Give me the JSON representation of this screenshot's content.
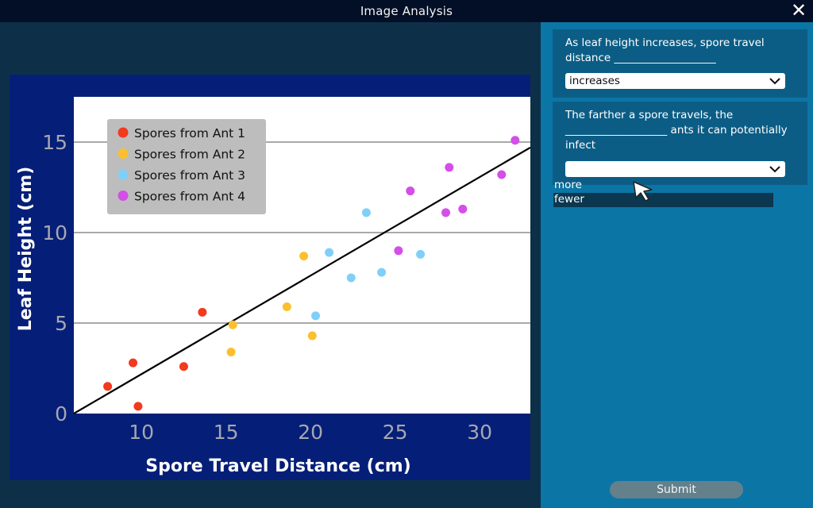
{
  "window": {
    "title": "Image Analysis",
    "close_label": "✕"
  },
  "questions": [
    {
      "text": "As leaf height increases, spore travel distance ___________________",
      "selected": "increases"
    },
    {
      "text": "The farther a spore travels, the ___________________ ants it can potentially infect",
      "selected": "",
      "options": [
        "more",
        "fewer"
      ],
      "highlighted": "fewer"
    }
  ],
  "submit_label": "Submit",
  "colors": {
    "ant1": "#f23a1e",
    "ant2": "#fcbf2e",
    "ant3": "#7fd0f8",
    "ant4": "#d44ee8",
    "axis_bg": "#051f78",
    "plot_bg": "#ffffff",
    "trend": "#000000"
  },
  "chart_data": {
    "type": "scatter",
    "title": "",
    "xlabel": "Spore Travel Distance (cm)",
    "ylabel": "Leaf Height (cm)",
    "xlim": [
      6,
      33
    ],
    "ylim": [
      0,
      17.5
    ],
    "xticks": [
      10,
      15,
      20,
      25,
      30
    ],
    "yticks": [
      0,
      5,
      10,
      15
    ],
    "grid": "horizontal",
    "legend_position": "top-left",
    "series": [
      {
        "name": "Spores from Ant 1",
        "color": "#f23a1e",
        "points": [
          [
            8,
            1.5
          ],
          [
            9.5,
            2.8
          ],
          [
            9.8,
            0.4
          ],
          [
            12.5,
            2.6
          ],
          [
            13.6,
            5.6
          ]
        ]
      },
      {
        "name": "Spores from Ant 2",
        "color": "#fcbf2e",
        "points": [
          [
            15.4,
            4.9
          ],
          [
            15.3,
            3.4
          ],
          [
            18.6,
            5.9
          ],
          [
            19.6,
            8.7
          ],
          [
            20.1,
            4.3
          ]
        ]
      },
      {
        "name": "Spores from Ant 3",
        "color": "#7fd0f8",
        "points": [
          [
            20.3,
            5.4
          ],
          [
            21.1,
            8.9
          ],
          [
            22.4,
            7.5
          ],
          [
            23.3,
            11.1
          ],
          [
            24.2,
            7.8
          ],
          [
            26.5,
            8.8
          ]
        ]
      },
      {
        "name": "Spores from Ant 4",
        "color": "#d44ee8",
        "points": [
          [
            25.2,
            9
          ],
          [
            25.9,
            12.3
          ],
          [
            28.0,
            11.1
          ],
          [
            28.2,
            13.6
          ],
          [
            29.0,
            11.3
          ],
          [
            31.3,
            13.2
          ],
          [
            32.1,
            15.1
          ]
        ]
      }
    ],
    "trendline": {
      "from": [
        6,
        0
      ],
      "to": [
        33,
        14.7
      ]
    }
  }
}
